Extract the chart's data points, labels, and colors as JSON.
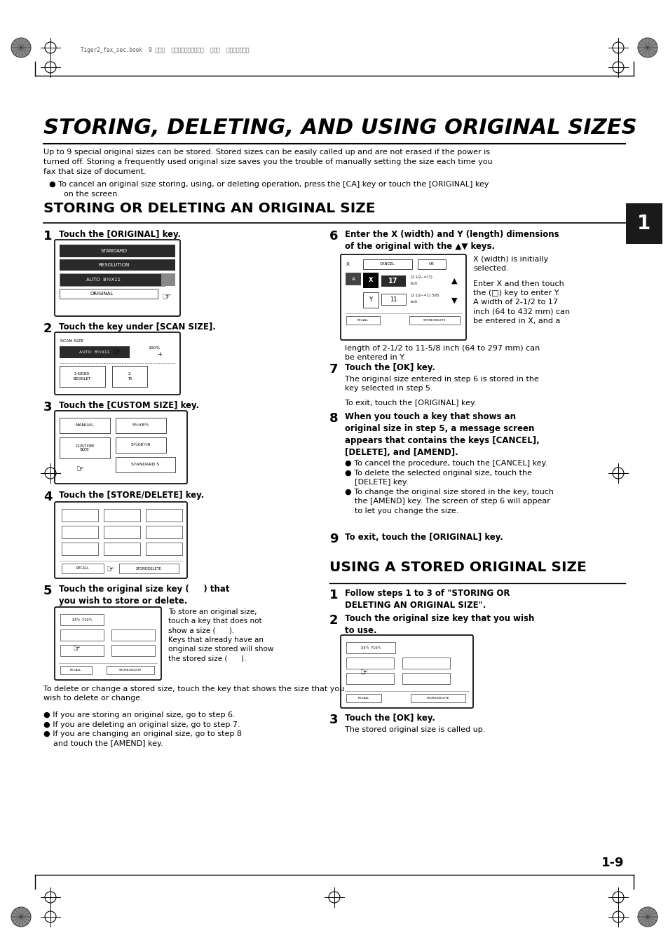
{
  "bg_color": "#ffffff",
  "page_width": 9.54,
  "page_height": 13.51,
  "top_margin_text": "Tiger2_fax_sec.book  9 ページ  ２００４年９月１６日  木曜日  午前８時５３分",
  "main_title": "STORING, DELETING, AND USING ORIGINAL SIZES",
  "intro_text": "Up to 9 special original sizes can be stored. Stored sizes can be easily called up and are not erased if the power is\nturned off. Storing a frequently used original size saves you the trouble of manually setting the size each time you\nfax that size of document.",
  "bullet_intro": "● To cancel an original size storing, using, or deleting operation, press the [CA] key or touch the [ORIGINAL] key\n      on the screen.",
  "section1_title": "STORING OR DELETING AN ORIGINAL SIZE",
  "tab_number": "1",
  "step1_text": "Touch the [ORIGINAL] key.",
  "step2_text": "Touch the key under [SCAN SIZE].",
  "step3_text": "Touch the [CUSTOM SIZE] key.",
  "step4_text": "Touch the [STORE/DELETE] key.",
  "step5_bold": "Touch the original size key (     ) that\nyou wish to store or delete.",
  "step5_para1": "To store an original size,\ntouch a key that does not\nshow a size (      ).\nKeys that already have an\noriginal size stored will show\nthe stored size (      ).",
  "step5_para2": "To delete or change a stored size, touch the key that shows the size that you\nwish to delete or change.",
  "step5_bullets": "● If you are storing an original size, go to step 6.\n● If you are deleting an original size, go to step 7.\n● If you are changing an original size, go to step 8\n    and touch the [AMEND] key.",
  "step6_bold": "Enter the X (width) and Y (length) dimensions\nof the original with the ▲▼ keys.",
  "step6_text1": "X (width) is initially\nselected.",
  "step6_text2": "Enter X and then touch\nthe (□) key to enter Y.\nA width of 2-1/2 to 17\ninch (64 to 432 mm) can\nbe entered in X, and a",
  "step6_text3": "length of 2-1/2 to 11-5/8 inch (64 to 297 mm) can\nbe entered in Y.",
  "step7_bold": "Touch the [OK] key.",
  "step7_text1": "The original size entered in step 6 is stored in the\nkey selected in step 5.",
  "step7_text2": "To exit, touch the [ORIGINAL] key.",
  "step8_bold": "When you touch a key that shows an\noriginal size in step 5, a message screen\nappears that contains the keys [CANCEL],\n[DELETE], and [AMEND].",
  "step8_bullets": "● To cancel the procedure, touch the [CANCEL] key.\n● To delete the selected original size, touch the\n    [DELETE] key.\n● To change the original size stored in the key, touch\n    the [AMEND] key. The screen of step 6 will appear\n    to let you change the size.",
  "step9_bold": "To exit, touch the [ORIGINAL] key.",
  "section2_title": "USING A STORED ORIGINAL SIZE",
  "s2_step1_bold": "Follow steps 1 to 3 of \"STORING OR\nDELETING AN ORIGINAL SIZE\".",
  "s2_step2_bold": "Touch the original size key that you wish\nto use.",
  "s2_step3_bold": "Touch the [OK] key.",
  "s2_step3_text": "The stored original size is called up.",
  "page_num": "1-9",
  "colors": {
    "black": "#000000",
    "white": "#ffffff",
    "tab_bg": "#1a1a1a",
    "tab_text": "#ffffff",
    "dark_screen": "#2a2a2a",
    "light_gray": "#cccccc"
  }
}
